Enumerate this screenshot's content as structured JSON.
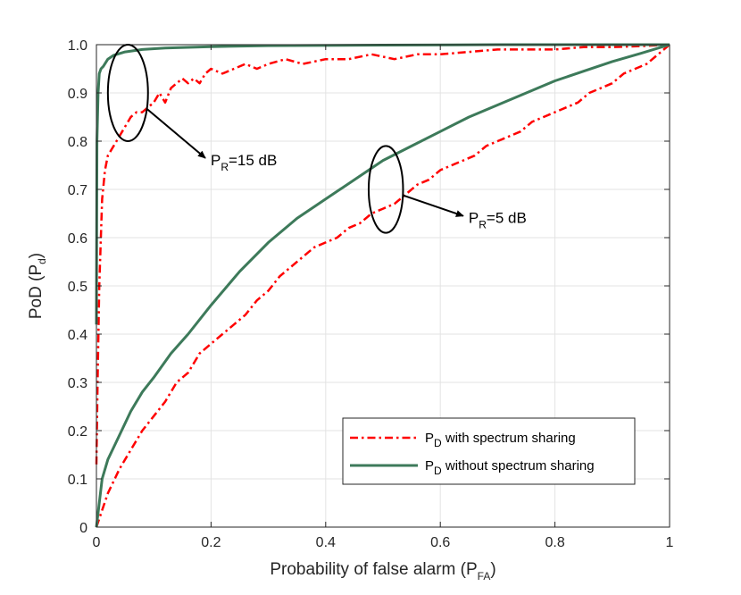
{
  "chart_data": {
    "type": "line",
    "title": "",
    "xlabel": {
      "main": "Probability of false alarm (P",
      "sub": "FA",
      "close": ")"
    },
    "ylabel": {
      "main": "PoD (P",
      "sub": "d",
      "close": ")"
    },
    "xlim": [
      0,
      1
    ],
    "ylim": [
      0,
      1
    ],
    "grid": true,
    "x_ticks": [
      "0",
      "0.2",
      "0.4",
      "0.6",
      "0.8",
      "1"
    ],
    "y_ticks": [
      "0",
      "0.1",
      "0.2",
      "0.3",
      "0.4",
      "0.5",
      "0.6",
      "0.7",
      "0.8",
      "0.9",
      "1.0"
    ],
    "legend_position": "bottom-right",
    "series": [
      {
        "name": "with_15dB",
        "legend": {
          "pre": "P",
          "sub": "D",
          "text": " with spectrum sharing"
        },
        "color": "#ff0000",
        "style": "dashdot",
        "x": [
          0,
          0.002,
          0.005,
          0.01,
          0.015,
          0.02,
          0.03,
          0.04,
          0.05,
          0.06,
          0.07,
          0.08,
          0.09,
          0.1,
          0.11,
          0.12,
          0.13,
          0.14,
          0.15,
          0.16,
          0.17,
          0.18,
          0.19,
          0.2,
          0.22,
          0.24,
          0.26,
          0.28,
          0.3,
          0.33,
          0.36,
          0.4,
          0.44,
          0.48,
          0.52,
          0.56,
          0.6,
          0.65,
          0.7,
          0.75,
          0.8,
          0.85,
          0.9,
          0.95,
          1.0
        ],
        "y": [
          0.13,
          0.3,
          0.5,
          0.68,
          0.74,
          0.77,
          0.79,
          0.81,
          0.83,
          0.85,
          0.86,
          0.86,
          0.87,
          0.88,
          0.9,
          0.88,
          0.91,
          0.92,
          0.93,
          0.92,
          0.93,
          0.92,
          0.94,
          0.95,
          0.94,
          0.95,
          0.96,
          0.95,
          0.96,
          0.97,
          0.96,
          0.97,
          0.97,
          0.98,
          0.97,
          0.98,
          0.98,
          0.985,
          0.99,
          0.99,
          0.99,
          0.995,
          0.995,
          0.997,
          1.0
        ]
      },
      {
        "name": "without_15dB",
        "legend": {
          "pre": "P",
          "sub": "D",
          "text": " without spectrum sharing"
        },
        "color": "#3d7a5a",
        "style": "solid",
        "x": [
          0,
          0.001,
          0.003,
          0.005,
          0.008,
          0.012,
          0.02,
          0.03,
          0.05,
          0.08,
          0.12,
          0.2,
          0.3,
          0.5,
          0.7,
          1.0
        ],
        "y": [
          0.42,
          0.8,
          0.9,
          0.94,
          0.95,
          0.955,
          0.97,
          0.978,
          0.985,
          0.99,
          0.993,
          0.996,
          0.998,
          0.999,
          1.0,
          1.0
        ]
      },
      {
        "name": "with_5dB",
        "color": "#ff0000",
        "style": "dashdot",
        "x": [
          0,
          0.02,
          0.04,
          0.06,
          0.08,
          0.1,
          0.12,
          0.14,
          0.16,
          0.18,
          0.2,
          0.22,
          0.24,
          0.26,
          0.28,
          0.3,
          0.32,
          0.34,
          0.36,
          0.38,
          0.4,
          0.42,
          0.44,
          0.46,
          0.48,
          0.5,
          0.52,
          0.54,
          0.56,
          0.58,
          0.6,
          0.62,
          0.64,
          0.66,
          0.68,
          0.7,
          0.72,
          0.74,
          0.76,
          0.78,
          0.8,
          0.82,
          0.84,
          0.86,
          0.88,
          0.9,
          0.92,
          0.94,
          0.96,
          0.98,
          1.0
        ],
        "y": [
          0,
          0.07,
          0.12,
          0.16,
          0.2,
          0.23,
          0.26,
          0.3,
          0.32,
          0.36,
          0.38,
          0.4,
          0.42,
          0.44,
          0.47,
          0.49,
          0.52,
          0.54,
          0.56,
          0.58,
          0.59,
          0.6,
          0.62,
          0.63,
          0.65,
          0.66,
          0.67,
          0.69,
          0.71,
          0.72,
          0.74,
          0.75,
          0.76,
          0.77,
          0.79,
          0.8,
          0.81,
          0.82,
          0.84,
          0.85,
          0.86,
          0.87,
          0.88,
          0.9,
          0.91,
          0.92,
          0.94,
          0.95,
          0.96,
          0.98,
          1.0
        ]
      },
      {
        "name": "without_5dB",
        "color": "#3d7a5a",
        "style": "solid",
        "x": [
          0,
          0.01,
          0.02,
          0.04,
          0.06,
          0.08,
          0.1,
          0.13,
          0.16,
          0.2,
          0.25,
          0.3,
          0.35,
          0.4,
          0.45,
          0.5,
          0.55,
          0.6,
          0.65,
          0.7,
          0.75,
          0.8,
          0.85,
          0.9,
          0.95,
          1.0
        ],
        "y": [
          0,
          0.1,
          0.14,
          0.19,
          0.24,
          0.28,
          0.31,
          0.36,
          0.4,
          0.46,
          0.53,
          0.59,
          0.64,
          0.68,
          0.72,
          0.76,
          0.79,
          0.82,
          0.85,
          0.875,
          0.9,
          0.925,
          0.945,
          0.965,
          0.982,
          1.0
        ]
      }
    ],
    "annotations": [
      {
        "label": {
          "pre": "P",
          "sub": "R",
          "text": "=15 dB"
        },
        "ellipse_center": [
          0.055,
          0.9
        ],
        "ellipse_radius": [
          0.035,
          0.1
        ],
        "arrow_to": [
          0.19,
          0.765
        ]
      },
      {
        "label": {
          "pre": "P",
          "sub": "R",
          "text": "=5 dB"
        },
        "ellipse_center": [
          0.505,
          0.7
        ],
        "ellipse_radius": [
          0.03,
          0.09
        ],
        "arrow_to": [
          0.64,
          0.645
        ]
      }
    ]
  }
}
